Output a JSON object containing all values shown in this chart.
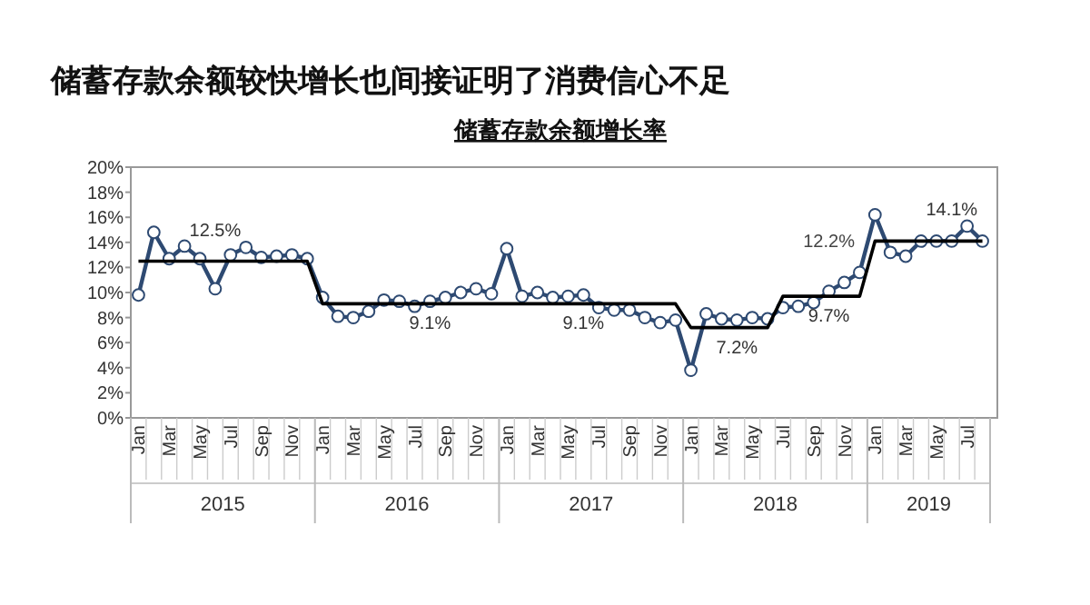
{
  "chart_data": {
    "type": "line",
    "title": "储蓄存款余额较快增长也间接证明了消费信心不足",
    "subtitle": "储蓄存款余额增长率",
    "categories": [
      "Jan",
      null,
      "Mar",
      null,
      "May",
      null,
      "Jul",
      null,
      "Sep",
      null,
      "Nov",
      null,
      "Jan",
      null,
      "Mar",
      null,
      "May",
      null,
      "Jul",
      null,
      "Sep",
      null,
      "Nov",
      null,
      "Jan",
      null,
      "Mar",
      null,
      "May",
      null,
      "Jul",
      null,
      "Sep",
      null,
      "Nov",
      null,
      "Jan",
      null,
      "Mar",
      null,
      "May",
      null,
      "Jul",
      null,
      "Sep",
      null,
      "Nov",
      null,
      "Jan",
      null,
      "Mar",
      null,
      "May",
      null,
      "Jul",
      null
    ],
    "series": [
      {
        "color": "#2e4a72",
        "marker": "circle",
        "values": [
          9.8,
          14.8,
          12.7,
          13.7,
          12.7,
          10.3,
          13.0,
          13.6,
          12.8,
          12.9,
          13.0,
          12.7,
          9.6,
          8.1,
          8.0,
          8.5,
          9.4,
          9.3,
          8.9,
          9.3,
          9.6,
          10.0,
          10.3,
          9.9,
          13.5,
          9.7,
          10.0,
          9.6,
          9.7,
          9.8,
          8.8,
          8.6,
          8.6,
          8.0,
          7.6,
          7.8,
          3.8,
          8.3,
          7.9,
          7.8,
          8.0,
          7.9,
          8.8,
          8.9,
          9.2,
          10.1,
          10.8,
          11.6,
          16.2,
          13.2,
          12.9,
          14.1,
          14.1,
          14.1,
          15.3,
          14.1
        ]
      },
      {
        "color": "#000000",
        "marker": "none",
        "values": [
          12.5,
          12.5,
          12.5,
          12.5,
          12.5,
          12.5,
          12.5,
          12.5,
          12.5,
          12.5,
          12.5,
          12.5,
          9.1,
          9.1,
          9.1,
          9.1,
          9.1,
          9.1,
          9.1,
          9.1,
          9.1,
          9.1,
          9.1,
          9.1,
          9.1,
          9.1,
          9.1,
          9.1,
          9.1,
          9.1,
          9.1,
          9.1,
          9.1,
          9.1,
          9.1,
          9.1,
          7.2,
          7.2,
          7.2,
          7.2,
          7.2,
          7.2,
          9.7,
          9.7,
          9.7,
          9.7,
          9.7,
          9.7,
          14.1,
          14.1,
          14.1,
          14.1,
          14.1,
          14.1,
          14.1,
          14.1
        ],
        "value_labels": [
          null,
          null,
          null,
          null,
          null,
          "12.5%",
          null,
          null,
          null,
          null,
          null,
          null,
          null,
          null,
          null,
          null,
          null,
          null,
          null,
          "9.1%",
          null,
          null,
          null,
          null,
          null,
          null,
          null,
          null,
          null,
          "9.1%",
          null,
          null,
          null,
          null,
          null,
          null,
          null,
          null,
          null,
          "7.2%",
          null,
          null,
          null,
          null,
          null,
          "9.7%",
          null,
          null,
          null,
          null,
          null,
          null,
          null,
          "14.1%",
          null,
          null
        ]
      }
    ],
    "annotations": [
      "2015",
      "2016",
      "2017",
      "2018",
      "2019",
      "12.2%"
    ],
    "ylim": [
      0,
      20
    ],
    "yticks": [
      {
        "value": 0,
        "label": "0%"
      },
      {
        "value": 2,
        "label": "2%"
      },
      {
        "value": 4,
        "label": "4%"
      },
      {
        "value": 6,
        "label": "6%"
      },
      {
        "value": 8,
        "label": "8%"
      },
      {
        "value": 10,
        "label": "10%"
      },
      {
        "value": 12,
        "label": "12%"
      },
      {
        "value": 14,
        "label": "14%"
      },
      {
        "value": 16,
        "label": "16%"
      },
      {
        "value": 18,
        "label": "18%"
      },
      {
        "value": 20,
        "label": "20%"
      }
    ],
    "grid": false
  }
}
